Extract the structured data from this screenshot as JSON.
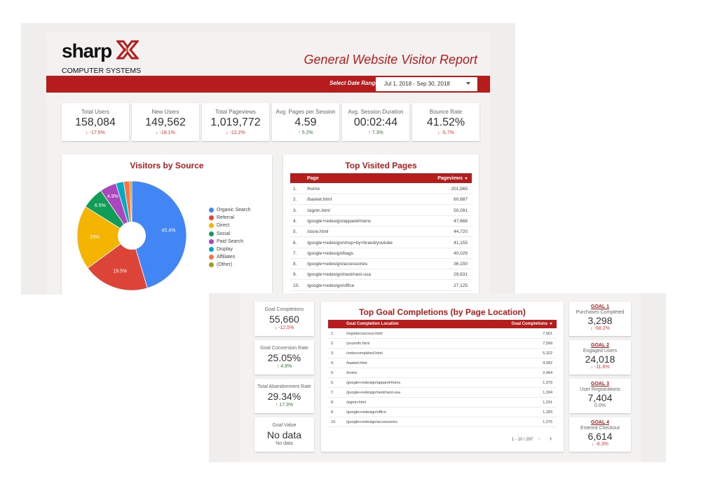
{
  "back": {
    "logo": {
      "word": "sharp",
      "subtitle": "COMPUTER SYSTEMS"
    },
    "title": "General Website Visitor Report",
    "date_range": {
      "label": "Select Date Range:",
      "value": "Jul 1, 2018 - Sep 30, 2018"
    },
    "kpis": [
      {
        "label": "Total Users",
        "value": "158,084",
        "delta": "-17.5%",
        "dir": "down"
      },
      {
        "label": "New Users",
        "value": "149,562",
        "delta": "-18.1%",
        "dir": "down"
      },
      {
        "label": "Total Pageviews",
        "value": "1,019,772",
        "delta": "-12.2%",
        "dir": "down"
      },
      {
        "label": "Avg. Pages per Session",
        "value": "4.59",
        "delta": "5.2%",
        "dir": "up"
      },
      {
        "label": "Avg. Session Duration",
        "value": "00:02:44",
        "delta": "7.3%",
        "dir": "up"
      },
      {
        "label": "Bounce Rate",
        "value": "41.52%",
        "delta": "-5.7%",
        "dir": "down"
      }
    ],
    "sources": {
      "title": "Visitors by Source",
      "chart_data": {
        "type": "pie",
        "categories": [
          "Organic Search",
          "Referral",
          "Direct",
          "Social",
          "Paid Search",
          "Display",
          "Affiliates",
          "(Other)"
        ],
        "values": [
          45.4,
          19.5,
          19.0,
          6.5,
          4.9,
          2.3,
          1.8,
          0.6
        ],
        "data_labels": [
          "45.4%",
          "19.5%",
          "19%",
          "6.5%",
          "4.9%",
          "",
          "",
          ""
        ],
        "colors": [
          "#4285f4",
          "#db4437",
          "#f4b400",
          "#0f9d58",
          "#ab47bc",
          "#00acc1",
          "#ff7043",
          "#9e9d24"
        ],
        "legend": "right"
      }
    },
    "top_pages": {
      "title": "Top Visited Pages",
      "headers": {
        "page": "Page",
        "views": "Pageviews"
      },
      "rows": [
        {
          "n": "1.",
          "page": "/home",
          "views": "201,565"
        },
        {
          "n": "2.",
          "page": "/basket.html",
          "views": "60,887"
        },
        {
          "n": "3.",
          "page": "/signin.html",
          "views": "50,091"
        },
        {
          "n": "4.",
          "page": "/google+redesign/apparel/mens",
          "views": "47,668"
        },
        {
          "n": "5.",
          "page": "/store.html",
          "views": "44,720"
        },
        {
          "n": "6.",
          "page": "/google+redesign/shop+by+brand/youtube",
          "views": "41,155"
        },
        {
          "n": "7.",
          "page": "/google+redesign/bags",
          "views": "40,029"
        },
        {
          "n": "8.",
          "page": "/google+redesign/accessories",
          "views": "36,150"
        },
        {
          "n": "9.",
          "page": "/google+redesign/nest/nest-usa",
          "views": "29,831"
        },
        {
          "n": "10.",
          "page": "/google+redesign/office",
          "views": "27,125"
        }
      ]
    }
  },
  "front": {
    "left_kpis": [
      {
        "label": "Goal Completions",
        "value": "55,660",
        "delta": "-12.5%",
        "dir": "down"
      },
      {
        "label": "Goal Conversion Rate",
        "value": "25.05%",
        "delta": "4.8%",
        "dir": "up"
      },
      {
        "label": "Total Abandonment Rate",
        "value": "29.34%",
        "delta": "17.3%",
        "dir": "up"
      },
      {
        "label": "Goal Value",
        "value": "No data",
        "delta": "No data",
        "dir": "none"
      }
    ],
    "goal_table": {
      "title": "Top Goal Completions (by Page Location)",
      "headers": {
        "location": "Goal Completion Location",
        "count": "Goal Completions"
      },
      "rows": [
        {
          "n": "1.",
          "loc": "/registersuccess.html",
          "count": "7,661"
        },
        {
          "n": "2.",
          "loc": "/yourinfo.html",
          "count": "7,599"
        },
        {
          "n": "3.",
          "loc": "/ordercompleted.html",
          "count": "5,322"
        },
        {
          "n": "4.",
          "loc": "/basket.html",
          "count": "4,992"
        },
        {
          "n": "5.",
          "loc": "/home",
          "count": "2,464"
        },
        {
          "n": "6.",
          "loc": "/google+redesign/apparel/mens",
          "count": "1,379"
        },
        {
          "n": "7.",
          "loc": "/google+redesign/nest/nest-usa",
          "count": "1,334"
        },
        {
          "n": "8.",
          "loc": "/signin.html",
          "count": "1,291"
        },
        {
          "n": "9.",
          "loc": "/google+redesign/office",
          "count": "1,283"
        },
        {
          "n": "10.",
          "loc": "/google+redesign/accessories",
          "count": "1,275"
        }
      ],
      "pager": "1 - 10 / 297",
      "prev": "‹",
      "next": "›"
    },
    "goals": [
      {
        "link": "GOAL 1",
        "label": "Purchases Completed",
        "value": "3,298",
        "delta": "-58.2%",
        "dir": "down"
      },
      {
        "link": "GOAL 2",
        "label": "Engaged Users",
        "value": "24,018",
        "delta": "-11.8%",
        "dir": "down"
      },
      {
        "link": "GOAL 3",
        "label": "User Registrations",
        "value": "7,404",
        "delta": "0.0%",
        "dir": "none"
      },
      {
        "link": "GOAL 4",
        "label": "Entered Checkout",
        "value": "6,614",
        "delta": "-8.3%",
        "dir": "down"
      }
    ]
  }
}
